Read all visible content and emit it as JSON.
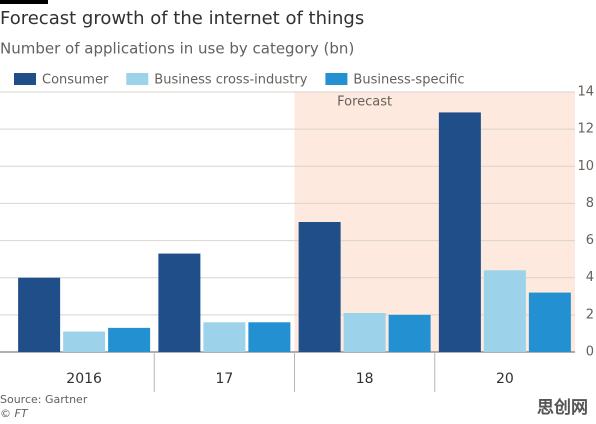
{
  "chart_data": {
    "type": "bar",
    "title": "Forecast growth of the internet of things",
    "subtitle": "Number of applications in use by category (bn)",
    "categories": [
      "2016",
      "17",
      "18",
      "20"
    ],
    "series": [
      {
        "name": "Consumer",
        "color": "#1f4e89",
        "values": [
          4.0,
          5.3,
          7.0,
          12.9
        ]
      },
      {
        "name": "Business cross-industry",
        "color": "#9dd3ea",
        "values": [
          1.1,
          1.6,
          2.1,
          4.4
        ]
      },
      {
        "name": "Business-specific",
        "color": "#2391d1",
        "values": [
          1.3,
          1.6,
          2.0,
          3.2
        ]
      }
    ],
    "ylim": [
      0,
      14
    ],
    "yticks": [
      0,
      2,
      4,
      6,
      8,
      10,
      12,
      14
    ],
    "grid": true,
    "y_axis_side": "right",
    "annotation": {
      "text": "Forecast",
      "start_category": "18",
      "color": "#fde9dd"
    },
    "source": "Source: Gartner",
    "credit": "© FT",
    "watermark": "思创网"
  }
}
